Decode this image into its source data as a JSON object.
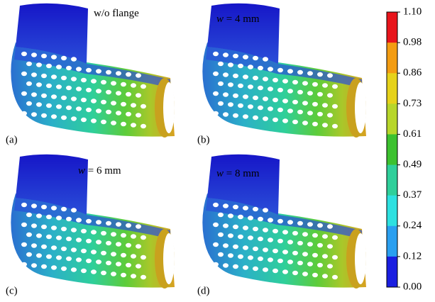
{
  "panels": [
    {
      "label": "(a)",
      "caption": "w/o flange"
    },
    {
      "label": "(b)",
      "variable": "w",
      "caption": "= 4 mm"
    },
    {
      "label": "(c)",
      "variable": "w",
      "caption": "= 6 mm"
    },
    {
      "label": "(d)",
      "variable": "w",
      "caption": "= 8 mm"
    }
  ],
  "colorbar": {
    "levels": [
      "1.10",
      "0.98",
      "0.86",
      "0.73",
      "0.61",
      "0.49",
      "0.37",
      "0.24",
      "0.12",
      "0.00"
    ],
    "colors": [
      "#e8141b",
      "#f39c12",
      "#e6d21a",
      "#b7d62a",
      "#3cc12f",
      "#2fcf9a",
      "#2de0e0",
      "#2a9ff0",
      "#1a1ee0"
    ]
  }
}
